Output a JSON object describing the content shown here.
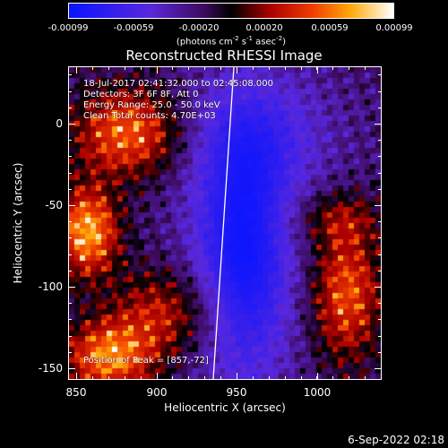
{
  "colorbar": {
    "ticks": [
      "-0.00099",
      "-0.00059",
      "-0.00020",
      "0.00020",
      "0.00059",
      "0.00099"
    ],
    "unit": {
      "base": "(photons cm",
      "e1": "-2",
      "s": " s",
      "e2": "-1",
      "a": " asec",
      "e3": "-2",
      "end": ")"
    }
  },
  "image": {
    "title": "Reconstructed RHESSI Image",
    "info": [
      "18-Jul-2017 02:41:32.000 to 02:45:08.000",
      "Detectors: 3F 6F 8F, Att 0",
      "Energy Range: 25.0 - 50.0 keV",
      "Clean     Total counts: 4.70E+03"
    ],
    "peak_label": "Position of Peak = [857,-72]"
  },
  "axes": {
    "xlabel": "Heliocentric X (arcsec)",
    "ylabel": "Heliocentric Y (arcsec)",
    "xticks": [
      "850",
      "900",
      "950",
      "1000"
    ],
    "yticks": [
      "0",
      "-50",
      "-100",
      "-150"
    ]
  },
  "timestamp": "6-Sep-2022 02:18"
}
